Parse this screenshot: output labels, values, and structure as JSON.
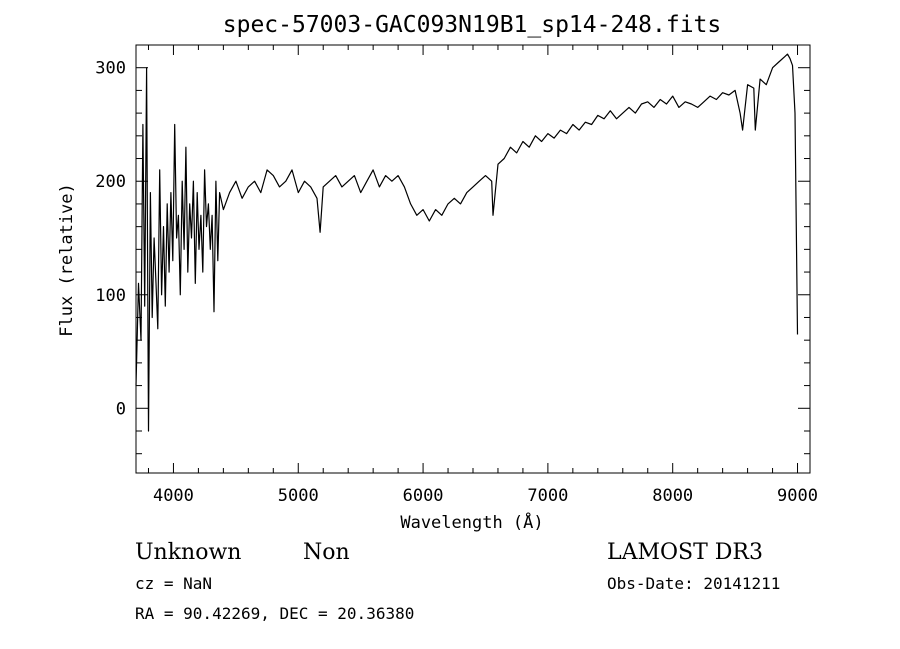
{
  "chart_data": {
    "type": "line",
    "title": "spec-57003-GAC093N19B1_sp14-248.fits",
    "xlabel": "Wavelength (Å)",
    "ylabel": "Flux (relative)",
    "xlim": [
      3700,
      9100
    ],
    "ylim": [
      -57,
      320
    ],
    "xticks": [
      4000,
      5000,
      6000,
      7000,
      8000,
      9000
    ],
    "xtick_labels": [
      "4000",
      "5000",
      "6000",
      "7000",
      "8000",
      "9000"
    ],
    "yticks": [
      0,
      100,
      200,
      300
    ],
    "ytick_labels": [
      "0",
      "100",
      "200",
      "300"
    ],
    "series": [
      {
        "name": "flux",
        "x": [
          3700,
          3720,
          3740,
          3755,
          3770,
          3785,
          3800,
          3815,
          3830,
          3845,
          3860,
          3875,
          3890,
          3905,
          3920,
          3935,
          3950,
          3965,
          3980,
          3995,
          4010,
          4025,
          4040,
          4055,
          4070,
          4085,
          4100,
          4115,
          4130,
          4145,
          4160,
          4175,
          4190,
          4205,
          4220,
          4235,
          4250,
          4265,
          4280,
          4295,
          4310,
          4325,
          4340,
          4355,
          4370,
          4400,
          4450,
          4500,
          4550,
          4600,
          4650,
          4700,
          4750,
          4800,
          4850,
          4900,
          4950,
          5000,
          5050,
          5100,
          5150,
          5175,
          5200,
          5250,
          5300,
          5350,
          5400,
          5450,
          5500,
          5550,
          5600,
          5650,
          5700,
          5750,
          5800,
          5850,
          5900,
          5950,
          6000,
          6050,
          6100,
          6150,
          6200,
          6250,
          6300,
          6350,
          6400,
          6450,
          6500,
          6550,
          6560,
          6600,
          6650,
          6700,
          6750,
          6800,
          6850,
          6900,
          6950,
          7000,
          7050,
          7100,
          7150,
          7200,
          7250,
          7300,
          7350,
          7400,
          7450,
          7500,
          7550,
          7600,
          7650,
          7700,
          7750,
          7800,
          7850,
          7900,
          7950,
          8000,
          8050,
          8100,
          8150,
          8200,
          8250,
          8300,
          8350,
          8400,
          8450,
          8500,
          8540,
          8560,
          8600,
          8650,
          8662,
          8700,
          8750,
          8800,
          8850,
          8900,
          8920,
          8940,
          8960,
          8980,
          9000
        ],
        "y": [
          20,
          110,
          60,
          250,
          90,
          300,
          -20,
          190,
          80,
          150,
          110,
          70,
          210,
          100,
          160,
          90,
          180,
          120,
          190,
          130,
          250,
          150,
          170,
          100,
          200,
          140,
          230,
          120,
          180,
          150,
          200,
          110,
          190,
          140,
          170,
          120,
          210,
          160,
          180,
          140,
          170,
          85,
          200,
          130,
          190,
          175,
          190,
          200,
          185,
          195,
          200,
          190,
          210,
          205,
          195,
          200,
          210,
          190,
          200,
          195,
          185,
          155,
          195,
          200,
          205,
          195,
          200,
          205,
          190,
          200,
          210,
          195,
          205,
          200,
          205,
          195,
          180,
          170,
          175,
          165,
          175,
          170,
          180,
          185,
          180,
          190,
          195,
          200,
          205,
          200,
          170,
          215,
          220,
          230,
          225,
          235,
          230,
          240,
          235,
          242,
          238,
          245,
          242,
          250,
          245,
          252,
          250,
          258,
          255,
          262,
          255,
          260,
          265,
          260,
          268,
          270,
          265,
          272,
          268,
          275,
          265,
          270,
          268,
          265,
          270,
          275,
          272,
          278,
          276,
          280,
          260,
          245,
          285,
          282,
          245,
          290,
          285,
          300,
          305,
          310,
          312,
          308,
          302,
          260,
          65
        ]
      }
    ]
  },
  "info": {
    "object_class": "Unknown",
    "object_subclass": "Non",
    "survey": "LAMOST DR3",
    "cz_text": "cz = NaN",
    "obs_date_text": "Obs-Date: 20141211",
    "coords_text": "RA =  90.42269, DEC =  20.36380"
  }
}
